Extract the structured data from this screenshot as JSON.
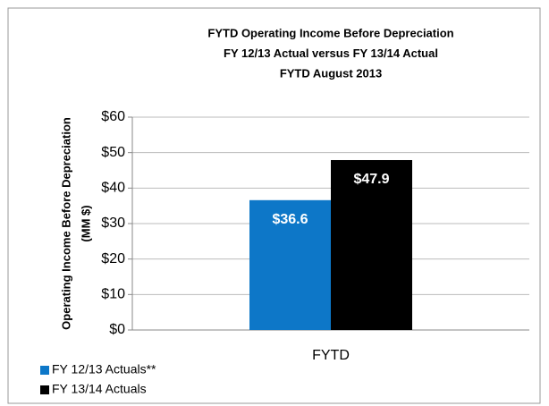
{
  "chart_data": {
    "type": "bar",
    "title": [
      "FYTD Operating Income Before Depreciation",
      "FY 12/13 Actual versus FY 13/14 Actual",
      "FYTD August 2013"
    ],
    "y_label": [
      "Operating Income Before Depreciation",
      "(MM $)"
    ],
    "categories": [
      "FYTD"
    ],
    "series": [
      {
        "name": "FY 12/13 Actuals**",
        "color": "#0d77c8",
        "values": [
          36.6
        ],
        "value_labels": [
          "$36.6"
        ]
      },
      {
        "name": "FY 13/14 Actuals",
        "color": "#000000",
        "values": [
          47.9
        ],
        "value_labels": [
          "$47.9"
        ]
      }
    ],
    "ylim": [
      0,
      60
    ],
    "yticks": [
      {
        "value": 0,
        "label": "$0"
      },
      {
        "value": 10,
        "label": "$10"
      },
      {
        "value": 20,
        "label": "$20"
      },
      {
        "value": 30,
        "label": "$30"
      },
      {
        "value": 40,
        "label": "$40"
      },
      {
        "value": 50,
        "label": "$50"
      },
      {
        "value": 60,
        "label": "$60"
      }
    ],
    "grid": true,
    "legend": "bottom-left"
  }
}
